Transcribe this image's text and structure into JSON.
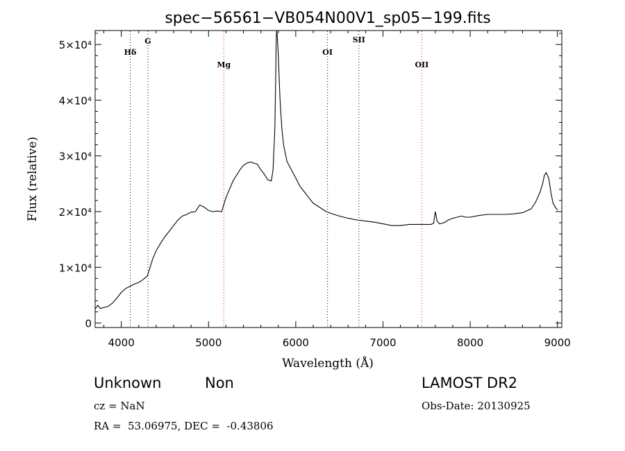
{
  "chart_data": {
    "type": "line",
    "title": "spec−56561−VB054N00V1_sp05−199.fits",
    "xlabel": "Wavelength (Å)",
    "ylabel": "Flux (relative)",
    "xlim": [
      3700,
      9050
    ],
    "ylim": [
      -800,
      52500
    ],
    "x_ticks": [
      4000,
      5000,
      6000,
      7000,
      8000,
      9000
    ],
    "y_ticks": [
      0,
      10000,
      20000,
      30000,
      40000,
      50000
    ],
    "y_tick_labels": [
      "0",
      "1×10⁴",
      "2×10⁴",
      "3×10⁴",
      "4×10⁴",
      "5×10⁴"
    ],
    "line_markers": [
      {
        "label": "Hδ",
        "x": 4102,
        "color": "#000000"
      },
      {
        "label": "G",
        "x": 4305,
        "color": "#000000"
      },
      {
        "label": "Mg",
        "x": 5175,
        "color": "#ff0000"
      },
      {
        "label": "OI",
        "x": 6364,
        "color": "#000000"
      },
      {
        "label": "SII",
        "x": 6724,
        "color": "#000000"
      },
      {
        "label": "OII",
        "x": 7445,
        "color": "#ff0000"
      }
    ],
    "series": [
      {
        "name": "flux",
        "x": [
          3700,
          3730,
          3760,
          3800,
          3850,
          3900,
          3950,
          4000,
          4050,
          4100,
          4150,
          4200,
          4250,
          4300,
          4330,
          4360,
          4400,
          4450,
          4500,
          4550,
          4600,
          4650,
          4700,
          4750,
          4800,
          4850,
          4900,
          4950,
          5000,
          5050,
          5100,
          5150,
          5200,
          5240,
          5280,
          5320,
          5360,
          5400,
          5440,
          5480,
          5520,
          5560,
          5600,
          5640,
          5680,
          5720,
          5740,
          5760,
          5770,
          5775,
          5780,
          5785,
          5790,
          5800,
          5810,
          5820,
          5840,
          5860,
          5880,
          5900,
          5950,
          6000,
          6050,
          6100,
          6150,
          6200,
          6250,
          6300,
          6350,
          6400,
          6500,
          6600,
          6700,
          6800,
          6900,
          7000,
          7100,
          7200,
          7300,
          7400,
          7500,
          7550,
          7580,
          7600,
          7620,
          7650,
          7700,
          7750,
          7800,
          7850,
          7900,
          7950,
          8000,
          8100,
          8200,
          8300,
          8400,
          8500,
          8600,
          8700,
          8750,
          8800,
          8830,
          8850,
          8870,
          8900,
          8930,
          8950,
          8980,
          9000
        ],
        "y": [
          2500,
          3200,
          2600,
          2800,
          3000,
          3600,
          4500,
          5500,
          6200,
          6600,
          7000,
          7300,
          7800,
          8500,
          10000,
          11500,
          13000,
          14300,
          15500,
          16500,
          17500,
          18500,
          19200,
          19500,
          19900,
          20000,
          21200,
          20800,
          20200,
          20000,
          20100,
          20000,
          22500,
          24000,
          25500,
          26500,
          27500,
          28300,
          28700,
          28900,
          28700,
          28500,
          27500,
          26700,
          25700,
          25500,
          27500,
          35000,
          44000,
          50000,
          52500,
          52000,
          51000,
          48000,
          44000,
          40000,
          35000,
          32000,
          30500,
          29000,
          27500,
          26000,
          24500,
          23500,
          22500,
          21500,
          21000,
          20500,
          20000,
          19700,
          19200,
          18800,
          18500,
          18300,
          18100,
          17800,
          17500,
          17500,
          17700,
          17700,
          17700,
          17700,
          17900,
          20000,
          18300,
          17800,
          18000,
          18500,
          18800,
          19000,
          19200,
          19000,
          19000,
          19300,
          19500,
          19500,
          19500,
          19600,
          19800,
          20500,
          21700,
          23500,
          25000,
          26500,
          27000,
          26000,
          23000,
          21500,
          20700,
          20300
        ]
      }
    ]
  },
  "footer": {
    "left_line1_a": "Unknown",
    "left_line1_b": "Non",
    "cz": "cz = NaN",
    "coords": "RA =  53.06975, DEC =  -0.43806",
    "survey": "LAMOST DR2",
    "obs_date": "Obs-Date: 20130925"
  }
}
